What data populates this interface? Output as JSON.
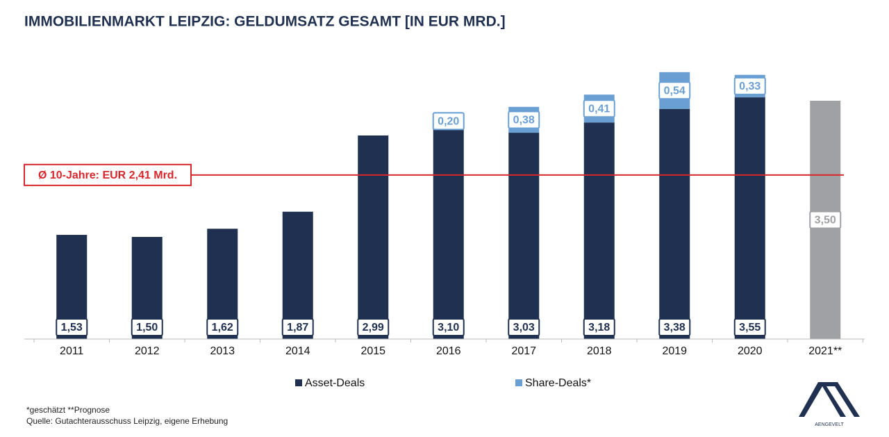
{
  "chart_data": {
    "type": "stacked_bar",
    "title": "IMMOBILIENMARKT LEIPZIG: GELDUMSATZ GESAMT [IN EUR MRD.]",
    "categories": [
      "2011",
      "2012",
      "2013",
      "2014",
      "2015",
      "2016",
      "2017",
      "2018",
      "2019",
      "2020",
      "2021**"
    ],
    "series": [
      {
        "name": "Asset-Deals",
        "color": "#1f3050",
        "values": [
          1.53,
          1.5,
          1.62,
          1.87,
          2.99,
          3.1,
          3.03,
          3.18,
          3.38,
          3.55,
          null
        ],
        "value_labels": [
          "1,53",
          "1,50",
          "1,62",
          "1,87",
          "2,99",
          "3,10",
          "3,03",
          "3,18",
          "3,38",
          "3,55",
          null
        ]
      },
      {
        "name": "Share-Deals*",
        "color": "#6a9fd4",
        "values": [
          null,
          null,
          null,
          null,
          null,
          0.2,
          0.38,
          0.41,
          0.54,
          0.33,
          null
        ],
        "value_labels": [
          null,
          null,
          null,
          null,
          null,
          "0,20",
          "0,38",
          "0,41",
          "0,54",
          "0,33",
          null
        ]
      },
      {
        "color": "#a0a1a5",
        "values": [
          null,
          null,
          null,
          null,
          null,
          null,
          null,
          null,
          null,
          null,
          3.5
        ],
        "value_labels": [
          null,
          null,
          null,
          null,
          null,
          null,
          null,
          null,
          null,
          null,
          "3,50"
        ]
      }
    ],
    "ylim": [
      0,
      4
    ],
    "average": {
      "value": 2.41,
      "label": "Ø 10-Jahre: EUR 2,41 Mrd.",
      "color": "#d9262b"
    },
    "footnotes": [
      "*geschätzt **Prognose",
      "Quelle: Gutachterausschuss Leipzig, eigene Erhebung"
    ],
    "logo": "AENGEVELT"
  }
}
